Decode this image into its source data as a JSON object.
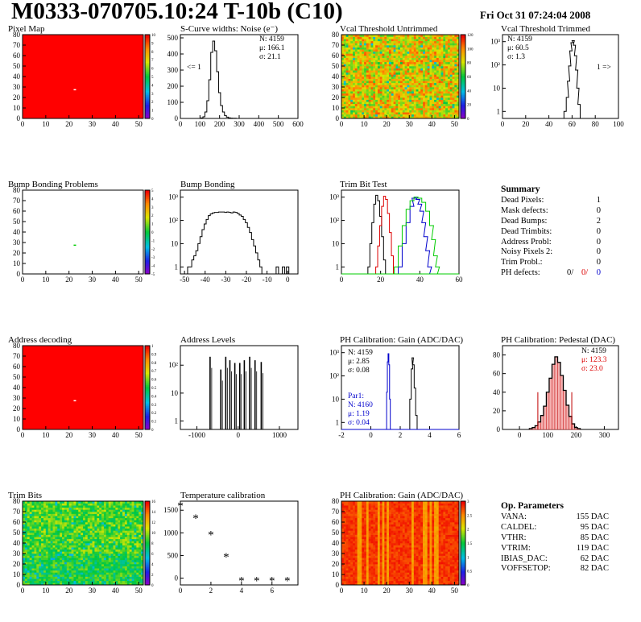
{
  "header": {
    "title": "M0333-070705.10:24 T-10b (C10)",
    "date": "Fri Oct 31 07:24:04 2008"
  },
  "colors": {
    "red_map": "#ff0000",
    "blue_series": "#0000cc",
    "green_series": "#00cc00",
    "stat_red": "#dd0000"
  },
  "panels": {
    "pixel_map": {
      "title": "Pixel Map",
      "zmax": "10",
      "z_ticks": [
        "0",
        "1",
        "2",
        "3",
        "4",
        "5",
        "6",
        "7",
        "8",
        "9",
        "10"
      ]
    },
    "noise": {
      "title": "S-Curve widths: Noise (e⁻)",
      "stats": {
        "n": "N: 4159",
        "mu": "μ: 166.1",
        "sigma": "σ: 21.1"
      },
      "overflow_note": "<= 1"
    },
    "vcal_untrimmed": {
      "title": "Vcal Threshold Untrimmed",
      "z_ticks": [
        "0",
        "20",
        "40",
        "60",
        "80",
        "100",
        "120"
      ]
    },
    "vcal_trimmed": {
      "title": "Vcal Threshold Trimmed",
      "stats": {
        "n": "N: 4159",
        "mu": "μ: 60.5",
        "sigma": "σ:  1.3"
      },
      "overflow_note": "1 =>"
    },
    "bump_problems": {
      "title": "Bump Bonding Problems",
      "z_ticks": [
        "-5",
        "-4",
        "-3",
        "-2",
        "-1",
        "0",
        "1",
        "2",
        "3",
        "4",
        "5"
      ]
    },
    "bump_bonding": {
      "title": "Bump Bonding"
    },
    "trim_bit_test": {
      "title": "Trim Bit Test"
    },
    "summary": {
      "heading": "Summary",
      "rows": [
        {
          "label": "Dead Pixels:",
          "value": "1"
        },
        {
          "label": "Mask defects:",
          "value": "0"
        },
        {
          "label": "Dead Bumps:",
          "value": "2"
        },
        {
          "label": "Dead Trimbits:",
          "value": "0"
        },
        {
          "label": "Address Probl:",
          "value": "0"
        },
        {
          "label": "Noisy Pixels 2:",
          "value": "0"
        },
        {
          "label": "Trim Probl.:",
          "value": "0"
        }
      ],
      "ph_defects": {
        "label": "PH defects:",
        "v1": "0/",
        "v2": "0/",
        "v3": "0"
      }
    },
    "address_decoding": {
      "title": "Address decoding",
      "z_ticks": [
        "0",
        "0.1",
        "0.2",
        "0.3",
        "0.4",
        "0.5",
        "0.6",
        "0.7",
        "0.8",
        "0.9",
        "1"
      ]
    },
    "address_levels": {
      "title": "Address Levels"
    },
    "ph_gain_hist": {
      "title": "PH Calibration: Gain (ADC/DAC)",
      "stats": {
        "n": "N: 4159",
        "mu": "μ: 2.85",
        "sigma": "σ: 0.08"
      },
      "par1": {
        "label": "Par1:",
        "n": "N: 4160",
        "mu": "μ: 1.19",
        "sigma": "σ: 0.04"
      }
    },
    "ph_pedestal": {
      "title": "PH Calibration: Pedestal (DAC)",
      "stats": {
        "n": "N: 4159",
        "mu": "μ: 123.3",
        "sigma": "σ: 23.0"
      }
    },
    "trim_bits": {
      "title": "Trim Bits",
      "z_ticks": [
        "0",
        "2",
        "4",
        "6",
        "8",
        "10",
        "12",
        "14",
        "16"
      ]
    },
    "temp_cal": {
      "title": "Temperature calibration"
    },
    "ph_gain_map": {
      "title": "PH Calibration: Gain (ADC/DAC)",
      "z_ticks": [
        "0",
        "0.5",
        "1",
        "1.5",
        "2",
        "2.5",
        "3"
      ]
    },
    "op_params": {
      "heading": "Op. Parameters",
      "rows": [
        {
          "label": "VANA:",
          "value": "155 DAC"
        },
        {
          "label": "CALDEL:",
          "value": "95 DAC"
        },
        {
          "label": "VTHR:",
          "value": "85 DAC"
        },
        {
          "label": "VTRIM:",
          "value": "119 DAC"
        },
        {
          "label": "IBIAS_DAC:",
          "value": "62 DAC"
        },
        {
          "label": "VOFFSETOP:",
          "value": "82 DAC"
        }
      ]
    }
  },
  "chart_data": [
    {
      "type": "heatmap",
      "title": "Pixel Map",
      "x_ticks": [
        "0",
        "10",
        "20",
        "30",
        "40",
        "50"
      ],
      "y_ticks": [
        "0",
        "10",
        "20",
        "30",
        "40",
        "50",
        "60",
        "70",
        "80"
      ],
      "xlim": [
        0,
        52
      ],
      "ylim": [
        0,
        80
      ],
      "zlim": [
        0,
        10
      ],
      "fill_value": 10,
      "dead_pixels": [
        {
          "x": 22,
          "y": 27
        }
      ]
    },
    {
      "type": "line",
      "title": "S-Curve widths: Noise (e⁻)",
      "x_ticks": [
        "0",
        "100",
        "200",
        "300",
        "400",
        "500",
        "600"
      ],
      "y_ticks": [
        "0",
        "100",
        "200",
        "300",
        "400",
        "500"
      ],
      "xlim": [
        0,
        600
      ],
      "ylim": [
        0,
        520
      ],
      "x": [
        100,
        110,
        120,
        130,
        140,
        150,
        160,
        170,
        180,
        190,
        200,
        210,
        220,
        230,
        240,
        250,
        260,
        270,
        280,
        290
      ],
      "y": [
        0,
        3,
        10,
        40,
        110,
        240,
        410,
        480,
        420,
        290,
        160,
        80,
        40,
        18,
        8,
        4,
        2,
        1,
        1,
        0
      ]
    },
    {
      "type": "heatmap",
      "title": "Vcal Threshold Untrimmed",
      "x_ticks": [
        "0",
        "10",
        "20",
        "30",
        "40",
        "50"
      ],
      "y_ticks": [
        "0",
        "10",
        "20",
        "30",
        "40",
        "50",
        "60",
        "70",
        "80"
      ],
      "xlim": [
        0,
        52
      ],
      "ylim": [
        0,
        80
      ],
      "zlim": [
        0,
        130
      ]
    },
    {
      "type": "line",
      "title": "Vcal Threshold Trimmed",
      "log_y": true,
      "x_ticks": [
        "0",
        "20",
        "40",
        "60",
        "80",
        "100"
      ],
      "y_ticks": [
        "1",
        "10",
        "10²",
        "10³"
      ],
      "xlim": [
        0,
        100
      ],
      "ylim": [
        0.5,
        2000
      ],
      "x": [
        52,
        54,
        56,
        57,
        58,
        59,
        60,
        61,
        62,
        63,
        64,
        65,
        66,
        68
      ],
      "y": [
        0.5,
        1,
        4,
        20,
        90,
        400,
        900,
        1100,
        700,
        250,
        60,
        10,
        2,
        0.5
      ]
    },
    {
      "type": "heatmap",
      "title": "Bump Bonding Problems",
      "x_ticks": [
        "0",
        "10",
        "20",
        "30",
        "40",
        "50"
      ],
      "y_ticks": [
        "0",
        "10",
        "20",
        "30",
        "40",
        "50",
        "60",
        "70",
        "80"
      ],
      "xlim": [
        0,
        52
      ],
      "ylim": [
        0,
        80
      ],
      "zlim": [
        -5,
        5
      ],
      "marked_pixels": [
        {
          "x": 22,
          "y": 27
        }
      ]
    },
    {
      "type": "line",
      "title": "Bump Bonding",
      "log_y": true,
      "x_ticks": [
        "-50",
        "-40",
        "-30",
        "-20",
        "-10",
        "0"
      ],
      "y_ticks": [
        "1",
        "10",
        "10²",
        "10³"
      ],
      "xlim": [
        -52,
        5
      ],
      "ylim": [
        0.5,
        2000
      ],
      "x": [
        -48,
        -47,
        -46,
        -45,
        -44,
        -43,
        -42,
        -41,
        -40,
        -39,
        -38,
        -37,
        -36,
        -35,
        -34,
        -33,
        -32,
        -31,
        -30,
        -29,
        -28,
        -27,
        -26,
        -25,
        -24,
        -23,
        -22,
        -21,
        -20,
        -19,
        -18,
        -17,
        -16,
        -15,
        -14,
        -13,
        -12,
        -11,
        -10,
        -5,
        -4,
        -2,
        -1,
        0,
        1
      ],
      "y": [
        1,
        1,
        2,
        3,
        5,
        10,
        20,
        40,
        70,
        110,
        160,
        190,
        210,
        220,
        220,
        230,
        230,
        230,
        220,
        230,
        220,
        210,
        230,
        220,
        200,
        170,
        150,
        110,
        80,
        50,
        30,
        15,
        8,
        4,
        2,
        1,
        0.5,
        0.5,
        0.5,
        1,
        0.5,
        1,
        0.5,
        1,
        0.5
      ]
    },
    {
      "type": "line",
      "title": "Trim Bit Test",
      "log_y": true,
      "x_ticks": [
        "0",
        "20",
        "40",
        "60"
      ],
      "y_ticks": [
        "1",
        "10",
        "10²",
        "10³"
      ],
      "xlim": [
        0,
        60
      ],
      "ylim": [
        0.5,
        2000
      ],
      "series": [
        {
          "color": "#000000",
          "x": [
            14,
            15,
            16,
            17,
            18,
            19,
            20,
            21,
            22,
            23
          ],
          "y": [
            1,
            10,
            80,
            500,
            1200,
            700,
            150,
            20,
            2,
            0.5
          ]
        },
        {
          "color": "#dd0000",
          "x": [
            18,
            19,
            20,
            21,
            22,
            23,
            24,
            25,
            26,
            27
          ],
          "y": [
            1,
            8,
            60,
            400,
            1100,
            800,
            200,
            30,
            3,
            0.5
          ]
        },
        {
          "color": "#0000cc",
          "x": [
            30,
            32,
            34,
            36,
            37,
            38,
            39,
            40,
            41,
            42,
            43,
            44,
            45,
            46
          ],
          "y": [
            1,
            10,
            80,
            400,
            900,
            1000,
            800,
            500,
            250,
            80,
            20,
            5,
            1,
            0.5
          ]
        },
        {
          "color": "#00cc00",
          "x": [
            28,
            30,
            32,
            34,
            36,
            38,
            40,
            42,
            44,
            46,
            47,
            48,
            49,
            50
          ],
          "y": [
            1,
            8,
            60,
            300,
            700,
            1000,
            900,
            600,
            250,
            60,
            15,
            3,
            1,
            0.5
          ]
        }
      ]
    },
    {
      "type": "heatmap",
      "title": "Address decoding",
      "x_ticks": [
        "0",
        "10",
        "20",
        "30",
        "40",
        "50"
      ],
      "y_ticks": [
        "0",
        "10",
        "20",
        "30",
        "40",
        "50",
        "60",
        "70",
        "80"
      ],
      "xlim": [
        0,
        52
      ],
      "ylim": [
        0,
        80
      ],
      "zlim": [
        0,
        1
      ],
      "fill_value": 1,
      "dead_pixels": [
        {
          "x": 22,
          "y": 27
        }
      ]
    },
    {
      "type": "bar",
      "title": "Address Levels",
      "log_y": true,
      "x_ticks": [
        "-1000",
        "0",
        "1000"
      ],
      "y_ticks": [
        "1",
        "10",
        "10²"
      ],
      "xlim": [
        -1400,
        1450
      ],
      "ylim": [
        0.5,
        500
      ],
      "x": [
        -680,
        -420,
        -300,
        -200,
        -80,
        40,
        150,
        280,
        410,
        560
      ],
      "y": [
        200,
        70,
        200,
        150,
        120,
        120,
        150,
        200,
        150,
        130
      ]
    },
    {
      "type": "line",
      "title": "PH Calibration: Gain (ADC/DAC)",
      "log_y": true,
      "x_ticks": [
        "-2",
        "0",
        "2",
        "4",
        "6"
      ],
      "y_ticks": [
        "1",
        "10",
        "10²",
        "10³"
      ],
      "xlim": [
        -2,
        6
      ],
      "ylim": [
        0.5,
        2000
      ],
      "series": [
        {
          "name": "Par1",
          "color": "#0000cc",
          "x": [
            1.05,
            1.1,
            1.15,
            1.2,
            1.25,
            1.3,
            1.35
          ],
          "y": [
            0.5,
            20,
            400,
            900,
            300,
            10,
            0.5
          ]
        },
        {
          "color": "#000000",
          "x": [
            2.6,
            2.7,
            2.8,
            2.85,
            2.9,
            3.0,
            3.1,
            3.2
          ],
          "y": [
            0.5,
            10,
            200,
            600,
            300,
            30,
            2,
            0.5
          ]
        }
      ]
    },
    {
      "type": "bar",
      "title": "PH Calibration: Pedestal (DAC)",
      "x_ticks": [
        "0",
        "100",
        "200",
        "300"
      ],
      "y_ticks": [
        "0",
        "20",
        "40",
        "60",
        "80"
      ],
      "xlim": [
        -60,
        350
      ],
      "ylim": [
        0,
        90
      ],
      "x": [
        40,
        50,
        60,
        70,
        80,
        90,
        100,
        110,
        120,
        130,
        140,
        150,
        160,
        170,
        180,
        190,
        200,
        210
      ],
      "y": [
        1,
        2,
        4,
        8,
        15,
        25,
        40,
        55,
        70,
        78,
        72,
        58,
        42,
        26,
        14,
        6,
        2,
        1
      ]
    },
    {
      "type": "heatmap",
      "title": "Trim Bits",
      "x_ticks": [
        "0",
        "10",
        "20",
        "30",
        "40",
        "50"
      ],
      "y_ticks": [
        "0",
        "10",
        "20",
        "30",
        "40",
        "50",
        "60",
        "70",
        "80"
      ],
      "xlim": [
        0,
        52
      ],
      "ylim": [
        0,
        80
      ],
      "zlim": [
        0,
        16
      ]
    },
    {
      "type": "scatter",
      "title": "Temperature calibration",
      "x_ticks": [
        "0",
        "2",
        "4",
        "6"
      ],
      "y_ticks": [
        "0",
        "500",
        "1000",
        "1500"
      ],
      "xlim": [
        0,
        7.7
      ],
      "ylim": [
        -150,
        1700
      ],
      "x": [
        0,
        1,
        2,
        3,
        4,
        5,
        6,
        7
      ],
      "y": [
        1600,
        1330,
        960,
        470,
        -50,
        -50,
        -50,
        -50
      ]
    },
    {
      "type": "heatmap",
      "title": "PH Calibration: Gain (ADC/DAC)",
      "x_ticks": [
        "0",
        "10",
        "20",
        "30",
        "40",
        "50"
      ],
      "y_ticks": [
        "0",
        "10",
        "20",
        "30",
        "40",
        "50",
        "60",
        "70",
        "80"
      ],
      "xlim": [
        0,
        52
      ],
      "ylim": [
        0,
        80
      ],
      "zlim": [
        0,
        3
      ]
    }
  ]
}
